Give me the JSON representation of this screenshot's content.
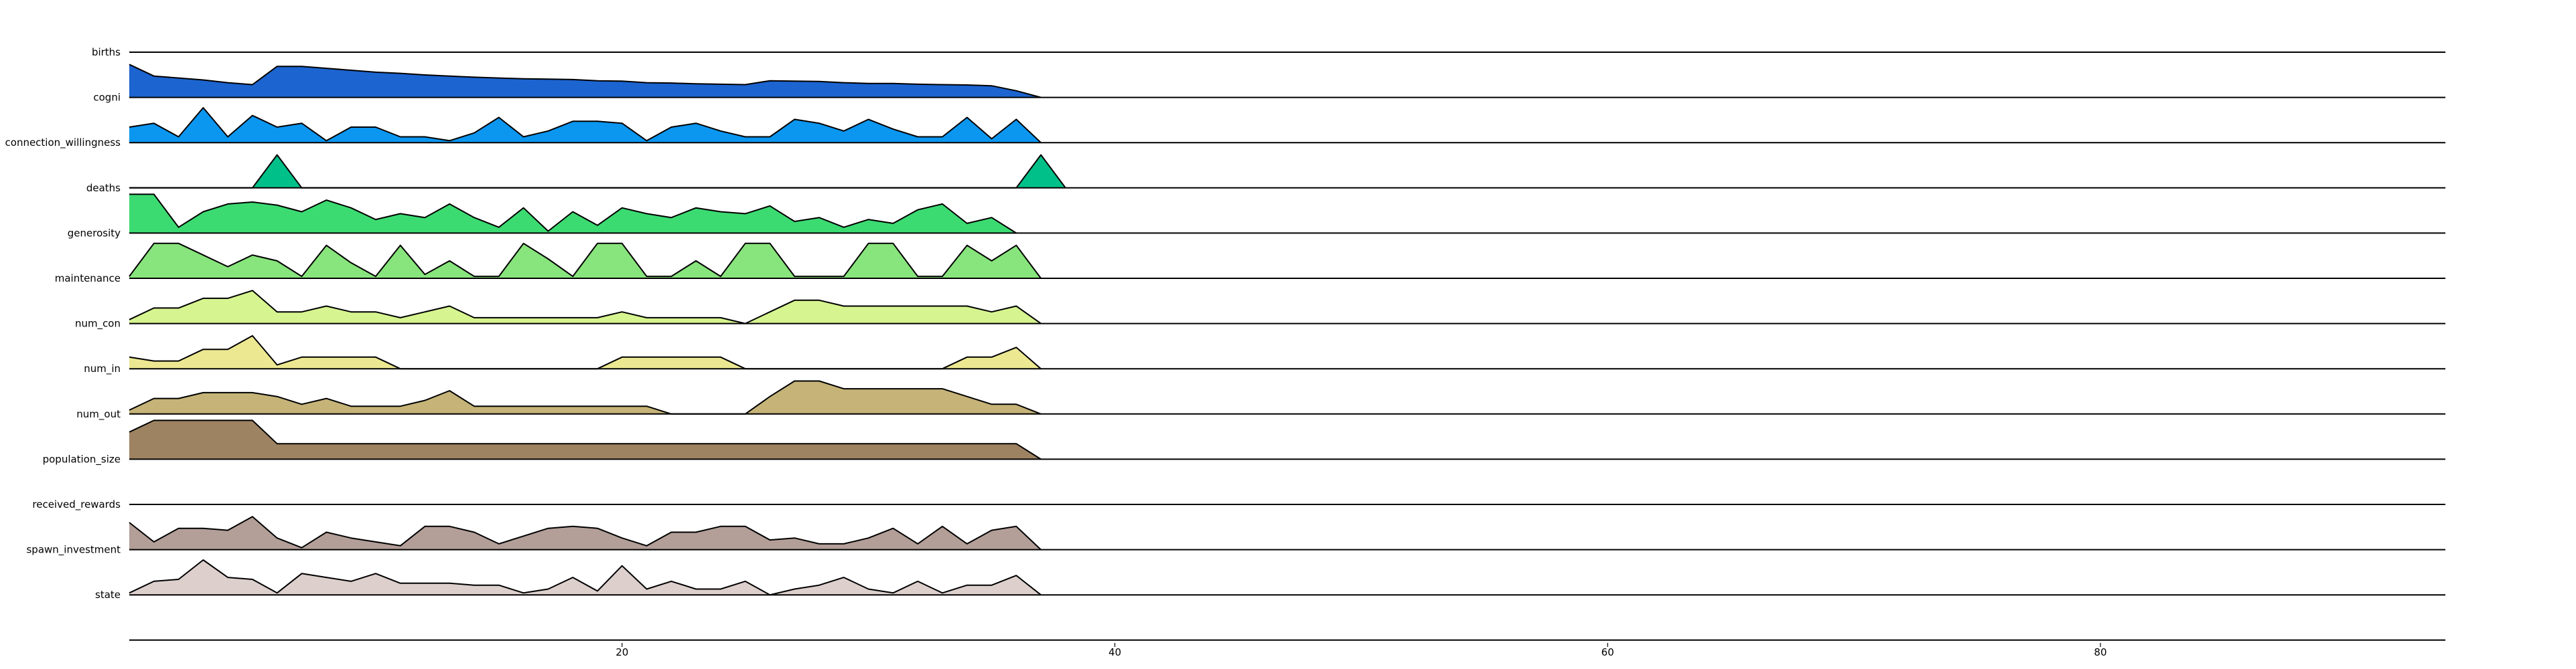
{
  "chart_data": {
    "type": "area",
    "subtype": "ridgeline",
    "title": "",
    "xlabel": "",
    "ylabel": "",
    "xlim": [
      0,
      94
    ],
    "x_ticks": [
      20,
      40,
      60,
      80
    ],
    "x_tick_labels": [
      "20",
      "40",
      "60",
      "80"
    ],
    "grid": false,
    "series": [
      {
        "name": "births",
        "color": "#1c64d0",
        "start": 0,
        "values": [
          0.85,
          0.55,
          0.5,
          0.45,
          0.38,
          0.33,
          0.8,
          0.8,
          0.75,
          0.7,
          0.65,
          0.62,
          0.58,
          0.55,
          0.52,
          0.5,
          0.48,
          0.47,
          0.46,
          0.43,
          0.42,
          0.38,
          0.37,
          0.35,
          0.34,
          0.33,
          0.43,
          0.42,
          0.41,
          0.38,
          0.36,
          0.36,
          0.34,
          0.33,
          0.32,
          0.3,
          0.17,
          0
        ]
      },
      {
        "name": "cogni",
        "color": "#0b96f0",
        "start": 0,
        "values": [
          0.4,
          0.5,
          0.15,
          0.9,
          0.15,
          0.7,
          0.4,
          0.5,
          0.05,
          0.4,
          0.4,
          0.15,
          0.15,
          0.05,
          0.25,
          0.65,
          0.15,
          0.3,
          0.55,
          0.55,
          0.5,
          0.05,
          0.4,
          0.5,
          0.3,
          0.15,
          0.15,
          0.6,
          0.5,
          0.3,
          0.6,
          0.35,
          0.15,
          0.15,
          0.65,
          0.1,
          0.6,
          0
        ]
      },
      {
        "name": "connection_willingness",
        "color": "#00c089",
        "start": 0,
        "values": [
          0,
          0,
          0,
          0,
          0,
          0,
          0.85,
          0,
          0,
          0,
          0,
          0,
          0,
          0,
          0,
          0,
          0,
          0,
          0,
          0,
          0,
          0,
          0,
          0,
          0,
          0,
          0,
          0,
          0,
          0,
          0,
          0,
          0,
          0,
          0,
          0,
          0,
          0.85,
          0
        ]
      },
      {
        "name": "deaths",
        "color": "#3cdb72",
        "start": 0,
        "values": [
          1.0,
          1.0,
          0.15,
          0.55,
          0.75,
          0.8,
          0.72,
          0.55,
          0.85,
          0.65,
          0.35,
          0.5,
          0.4,
          0.75,
          0.4,
          0.15,
          0.65,
          0.05,
          0.55,
          0.2,
          0.65,
          0.5,
          0.4,
          0.65,
          0.55,
          0.5,
          0.7,
          0.3,
          0.4,
          0.15,
          0.35,
          0.25,
          0.6,
          0.75,
          0.25,
          0.4,
          0
        ]
      },
      {
        "name": "generosity",
        "color": "#88e47c",
        "start": 0,
        "values": [
          0.05,
          0.9,
          0.9,
          0.6,
          0.3,
          0.6,
          0.45,
          0.05,
          0.85,
          0.4,
          0.05,
          0.85,
          0.1,
          0.45,
          0.05,
          0.05,
          0.9,
          0.5,
          0.05,
          0.9,
          0.9,
          0.05,
          0.05,
          0.45,
          0.05,
          0.9,
          0.9,
          0.05,
          0.05,
          0.05,
          0.9,
          0.9,
          0.05,
          0.05,
          0.85,
          0.45,
          0.85,
          0
        ]
      },
      {
        "name": "maintenance",
        "color": "#d6f490",
        "start": 0,
        "values": [
          0.1,
          0.4,
          0.4,
          0.65,
          0.65,
          0.85,
          0.3,
          0.3,
          0.45,
          0.3,
          0.3,
          0.15,
          0.3,
          0.45,
          0.15,
          0.15,
          0.15,
          0.15,
          0.15,
          0.15,
          0.3,
          0.15,
          0.15,
          0.15,
          0.15,
          0.0,
          0.3,
          0.6,
          0.6,
          0.45,
          0.45,
          0.45,
          0.45,
          0.45,
          0.45,
          0.3,
          0.45,
          0
        ]
      },
      {
        "name": "num_con",
        "color": "#ece892",
        "start": 0,
        "values": [
          0.3,
          0.2,
          0.2,
          0.5,
          0.5,
          0.85,
          0.1,
          0.3,
          0.3,
          0.3,
          0.3,
          0.0,
          0.0,
          0.0,
          0.0,
          0.0,
          0.0,
          0.0,
          0.0,
          0.0,
          0.3,
          0.3,
          0.3,
          0.3,
          0.3,
          0.0,
          0.0,
          0.0,
          0.0,
          0.0,
          0.0,
          0.0,
          0.0,
          0.0,
          0.3,
          0.3,
          0.55,
          0
        ]
      },
      {
        "name": "num_in",
        "color": "#c5b378",
        "start": 0,
        "values": [
          0.1,
          0.4,
          0.4,
          0.55,
          0.55,
          0.55,
          0.45,
          0.25,
          0.4,
          0.2,
          0.2,
          0.2,
          0.35,
          0.6,
          0.2,
          0.2,
          0.2,
          0.2,
          0.2,
          0.2,
          0.2,
          0.2,
          0.0,
          0.0,
          0.0,
          0.0,
          0.45,
          0.85,
          0.85,
          0.65,
          0.65,
          0.65,
          0.65,
          0.65,
          0.45,
          0.25,
          0.25,
          0
        ]
      },
      {
        "name": "num_out",
        "color": "#9e8362",
        "start": 0,
        "values": [
          0.7,
          1.0,
          1.0,
          1.0,
          1.0,
          1.0,
          0.4,
          0.4,
          0.4,
          0.4,
          0.4,
          0.4,
          0.4,
          0.4,
          0.4,
          0.4,
          0.4,
          0.4,
          0.4,
          0.4,
          0.4,
          0.4,
          0.4,
          0.4,
          0.4,
          0.4,
          0.4,
          0.4,
          0.4,
          0.4,
          0.4,
          0.4,
          0.4,
          0.4,
          0.4,
          0.4,
          0.4,
          0
        ]
      },
      {
        "name": "population_size",
        "color": "#9e8362",
        "start": 0,
        "values": []
      },
      {
        "name": "received_rewards",
        "color": "#b39e98",
        "start": 0,
        "values": [
          0.7,
          0.2,
          0.55,
          0.55,
          0.5,
          0.85,
          0.3,
          0.05,
          0.45,
          0.3,
          0.2,
          0.1,
          0.6,
          0.6,
          0.45,
          0.15,
          0.35,
          0.55,
          0.6,
          0.55,
          0.3,
          0.1,
          0.45,
          0.45,
          0.6,
          0.6,
          0.25,
          0.3,
          0.15,
          0.15,
          0.3,
          0.55,
          0.15,
          0.6,
          0.15,
          0.5,
          0.6,
          0
        ]
      },
      {
        "name": "spawn_investment",
        "color": "#dccfcc",
        "start": 0,
        "values": [
          0.05,
          0.35,
          0.4,
          0.9,
          0.45,
          0.4,
          0.05,
          0.55,
          0.45,
          0.35,
          0.55,
          0.3,
          0.3,
          0.3,
          0.25,
          0.25,
          0.05,
          0.15,
          0.45,
          0.1,
          0.75,
          0.15,
          0.35,
          0.15,
          0.15,
          0.35,
          0.0,
          0.15,
          0.25,
          0.45,
          0.15,
          0.05,
          0.35,
          0.05,
          0.25,
          0.25,
          0.5,
          0
        ]
      },
      {
        "name": "state",
        "color": "#dccfcc",
        "start": 0,
        "values": []
      }
    ]
  }
}
